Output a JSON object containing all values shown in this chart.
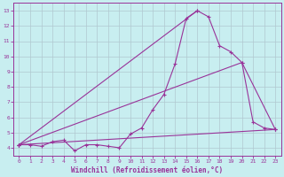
{
  "xlabel": "Windchill (Refroidissement éolien,°C)",
  "xlim": [
    -0.5,
    23.5
  ],
  "ylim": [
    3.5,
    13.5
  ],
  "xticks": [
    0,
    1,
    2,
    3,
    4,
    5,
    6,
    7,
    8,
    9,
    10,
    11,
    12,
    13,
    14,
    15,
    16,
    17,
    18,
    19,
    20,
    21,
    22,
    23
  ],
  "yticks": [
    4,
    5,
    6,
    7,
    8,
    9,
    10,
    11,
    12,
    13
  ],
  "bg_color": "#c8eef0",
  "grid_color": "#b0c8d0",
  "line_color": "#993399",
  "series": [
    {
      "x": [
        0,
        1,
        2,
        3,
        4,
        5,
        6,
        7,
        8,
        9,
        10,
        11,
        12,
        13,
        14,
        15,
        16,
        17,
        18,
        19,
        20,
        21,
        22,
        23
      ],
      "y": [
        4.2,
        4.2,
        4.1,
        4.4,
        4.5,
        3.8,
        4.2,
        4.2,
        4.1,
        4.0,
        4.9,
        5.3,
        6.5,
        7.5,
        9.5,
        12.5,
        13.0,
        12.6,
        10.7,
        10.3,
        9.6,
        5.7,
        5.3,
        5.2
      ]
    },
    {
      "x": [
        0,
        16
      ],
      "y": [
        4.2,
        13.0
      ]
    },
    {
      "x": [
        0,
        20,
        23
      ],
      "y": [
        4.2,
        9.6,
        5.2
      ]
    },
    {
      "x": [
        0,
        23
      ],
      "y": [
        4.2,
        5.2
      ]
    }
  ]
}
